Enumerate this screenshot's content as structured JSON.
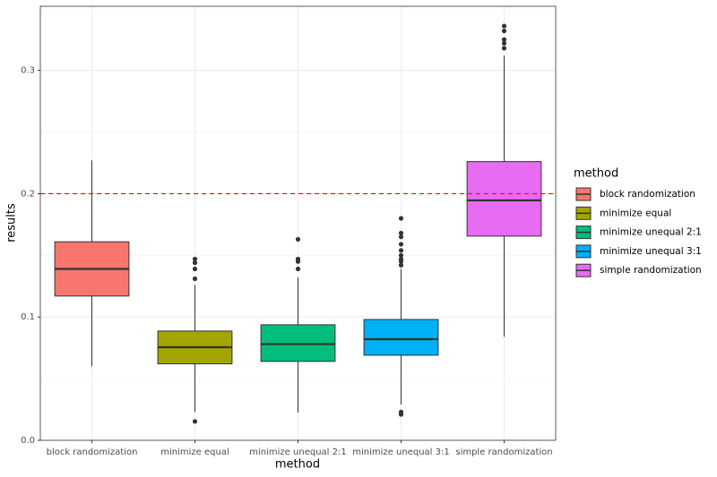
{
  "chart_data": {
    "type": "boxplot",
    "x_label": "method",
    "y_label": "results",
    "categories": [
      "block randomization",
      "minimize equal",
      "minimize unequal 2:1",
      "minimize unequal 3:1",
      "simple randomization"
    ],
    "legend_title": "method",
    "series": [
      {
        "name": "block randomization",
        "color": "#F8766D",
        "min": 0.06,
        "q1": 0.117,
        "median": 0.139,
        "q3": 0.161,
        "max": 0.227,
        "outliers": []
      },
      {
        "name": "minimize equal",
        "color": "#A3A500",
        "min": 0.023,
        "q1": 0.062,
        "median": 0.0755,
        "q3": 0.0886,
        "max": 0.126,
        "outliers": [
          0.147,
          0.144,
          0.139,
          0.131,
          0.0153
        ]
      },
      {
        "name": "minimize unequal 2:1",
        "color": "#00BF7D",
        "min": 0.0225,
        "q1": 0.064,
        "median": 0.078,
        "q3": 0.0937,
        "max": 0.132,
        "outliers": [
          0.163,
          0.147,
          0.145,
          0.139
        ]
      },
      {
        "name": "minimize unequal 3:1",
        "color": "#00B0F6",
        "min": 0.029,
        "q1": 0.069,
        "median": 0.082,
        "q3": 0.098,
        "max": 0.139,
        "outliers": [
          0.18,
          0.168,
          0.165,
          0.159,
          0.154,
          0.15,
          0.147,
          0.145,
          0.142,
          0.023,
          0.021
        ]
      },
      {
        "name": "simple randomization",
        "color": "#E76BF3",
        "min": 0.084,
        "q1": 0.1656,
        "median": 0.1946,
        "q3": 0.226,
        "max": 0.312,
        "outliers": [
          0.336,
          0.332,
          0.325,
          0.322,
          0.318
        ]
      }
    ],
    "hline": {
      "value": 0.2,
      "color": "#FF0000"
    },
    "ylim": [
      0,
      0.352
    ],
    "yticks": [
      {
        "value": 0,
        "label": "0.0"
      },
      0.1,
      0.2,
      0.3
    ],
    "minor_yticks": [
      0.05,
      0.15,
      0.25,
      0.35
    ],
    "grid": true
  }
}
